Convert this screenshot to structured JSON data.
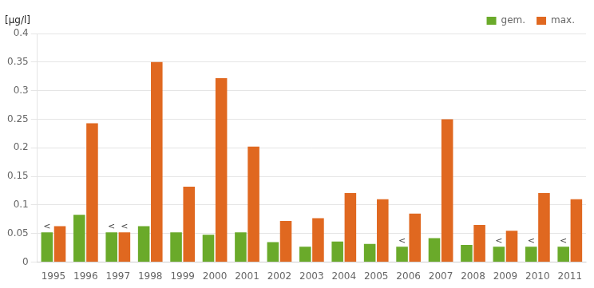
{
  "chart_data": {
    "type": "bar",
    "y_label": "[µg/l]",
    "categories": [
      "1995",
      "1996",
      "1997",
      "1998",
      "1999",
      "2000",
      "2001",
      "2002",
      "2003",
      "2004",
      "2005",
      "2006",
      "2007",
      "2008",
      "2009",
      "2010",
      "2011"
    ],
    "series": [
      {
        "name": "gem.",
        "color": "#6aaa2a",
        "values": [
          0.052,
          0.083,
          0.052,
          0.063,
          0.052,
          0.048,
          0.052,
          0.035,
          0.027,
          0.036,
          0.032,
          0.027,
          0.042,
          0.03,
          0.027,
          0.027,
          0.027
        ]
      },
      {
        "name": "max.",
        "color": "#e06820",
        "values": [
          0.063,
          0.243,
          0.052,
          0.35,
          0.132,
          0.322,
          0.202,
          0.072,
          0.077,
          0.121,
          0.11,
          0.085,
          0.25,
          0.065,
          0.055,
          0.121,
          0.11
        ]
      }
    ],
    "annotations": [
      {
        "series": "gem.",
        "category": "1995",
        "text": "<"
      },
      {
        "series": "gem.",
        "category": "1997",
        "text": "<"
      },
      {
        "series": "gem.",
        "category": "2006",
        "text": "<"
      },
      {
        "series": "gem.",
        "category": "2009",
        "text": "<"
      },
      {
        "series": "gem.",
        "category": "2010",
        "text": "<"
      },
      {
        "series": "gem.",
        "category": "2011",
        "text": "<"
      },
      {
        "series": "max.",
        "category": "1997",
        "text": "<"
      }
    ],
    "ylim": [
      0,
      0.4
    ],
    "yticks": [
      0,
      0.05,
      0.1,
      0.15,
      0.2,
      0.25,
      0.3,
      0.35,
      0.4
    ],
    "grid": true,
    "legend": "upper right"
  }
}
